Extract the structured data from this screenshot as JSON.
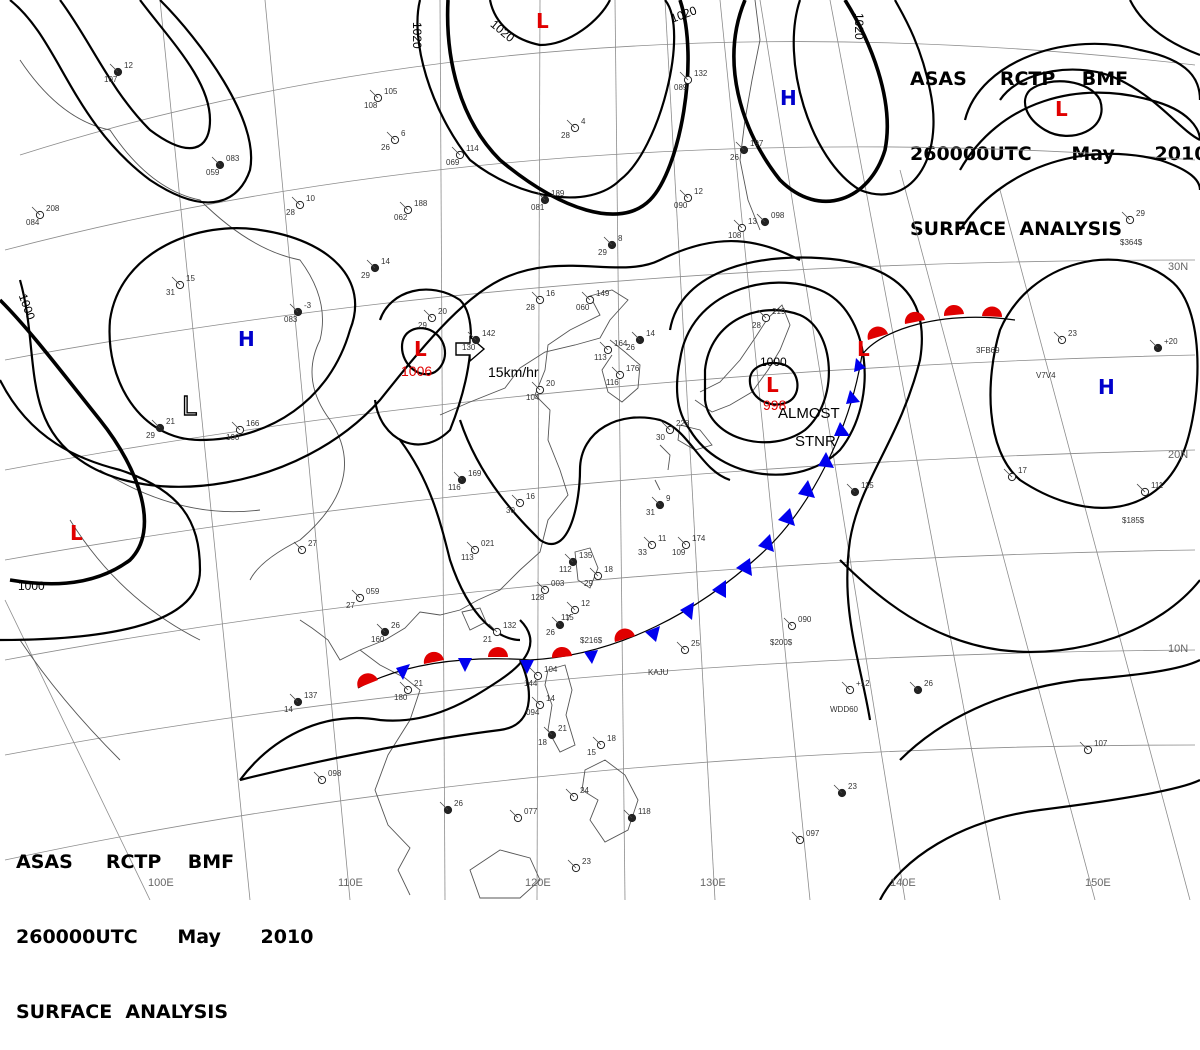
{
  "header_top": {
    "line1": "ASAS     RCTP    BMF",
    "line2": "260000UTC      May      2010",
    "line3": "SURFACE  ANALYSIS"
  },
  "header_bottom": {
    "line1": "ASAS     RCTP    BMF",
    "line2": "260000UTC      May      2010",
    "line3": "SURFACE  ANALYSIS"
  },
  "longitude_labels": [
    "100E",
    "110E",
    "120E",
    "130E",
    "140E",
    "150E"
  ],
  "latitude_labels": [
    "30N",
    "20N",
    "10N"
  ],
  "isobar_labels": [
    "1020",
    "1020",
    "1020",
    "1020",
    "1000",
    "1000",
    "1000"
  ],
  "pressure_centers": [
    {
      "symbol": "L",
      "color": "#e00000",
      "value": "1006"
    },
    {
      "symbol": "L",
      "color": "#e00000",
      "value": "998"
    },
    {
      "symbol": "L",
      "color": "#e00000",
      "value": ""
    },
    {
      "symbol": "L",
      "color": "#e00000",
      "value": ""
    },
    {
      "symbol": "L",
      "color": "#e00000",
      "value": ""
    },
    {
      "symbol": "L",
      "color": "#e00000",
      "value": ""
    },
    {
      "symbol": "H",
      "color": "#0000cc",
      "value": ""
    },
    {
      "symbol": "H",
      "color": "#0000cc",
      "value": ""
    },
    {
      "symbol": "H",
      "color": "#0000cc",
      "value": ""
    },
    {
      "symbol": "L",
      "color": "#000000",
      "value": ""
    }
  ],
  "annotations": {
    "motion_speed": "15km/hr",
    "almost": "ALMOST",
    "stnr": "STNR"
  },
  "front": {
    "type": "stationary",
    "warm_color": "#e00000",
    "cold_color": "#0000ee"
  },
  "station_values": [
    "12",
    "105",
    "6",
    "083",
    "10",
    "188",
    "14",
    "114",
    "4",
    "189",
    "16",
    "149",
    "8",
    "132",
    "12",
    "197",
    "13",
    "219",
    "-3",
    "15",
    "208",
    "21",
    "166",
    "20",
    "142",
    "20",
    "164",
    "14",
    "176",
    "228",
    "169",
    "16",
    "021",
    "9",
    "174",
    "11",
    "135",
    "18",
    "003",
    "7",
    "12",
    "059",
    "26",
    "132",
    "21",
    "137",
    "104",
    "14",
    "21",
    "18",
    "098",
    "26",
    "077",
    "24",
    "118",
    "23",
    "090",
    "23",
    "097",
    "+12",
    "26",
    "107",
    "17",
    "+20",
    "29",
    "111",
    "115",
    "25",
    "27",
    "098",
    "23",
    "107",
    "108",
    "26",
    "059",
    "28",
    "062",
    "29",
    "069",
    "28",
    "081",
    "28",
    "060",
    "29",
    "089",
    "090",
    "26",
    "108",
    "28",
    "083",
    "31",
    "084",
    "29",
    "100",
    "29",
    "130",
    "104",
    "113",
    "26",
    "116",
    "30",
    "116",
    "30",
    "113",
    "31",
    "109",
    "33",
    "112",
    "29",
    "128",
    "26",
    "115",
    "27",
    "160",
    "21",
    "180",
    "14",
    "144",
    "094",
    "18",
    "15"
  ],
  "station_codes": [
    "$216$",
    "$200$",
    "KAJU",
    "WDD60",
    "$364$",
    "$185$",
    "3FB69",
    "V7V4"
  ]
}
